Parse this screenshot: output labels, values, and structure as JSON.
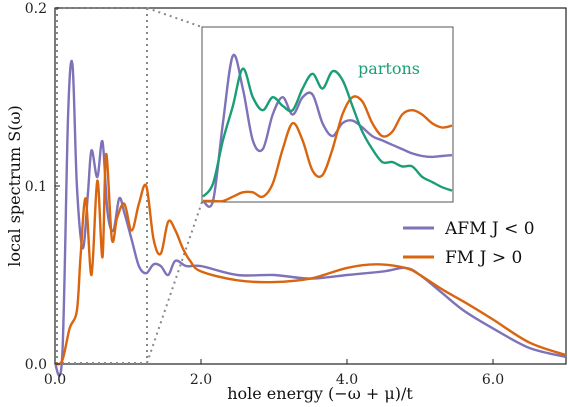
{
  "chart_data": [
    {
      "type": "line",
      "xlabel": "hole energy (−ω + μ)/t",
      "ylabel": "local spectrum S(ω)",
      "xlim": [
        0,
        7
      ],
      "ylim": [
        0,
        0.2
      ],
      "xticks": [
        "0.0",
        "2.0",
        "4.0",
        "6.0"
      ],
      "yticks": [
        "0.0",
        "0.1",
        "0.2"
      ],
      "grid": false,
      "legend": "right",
      "colors": {
        "afm": "#7e72b8",
        "fm": "#d9650f",
        "partons": "#1b9e77"
      },
      "series": [
        {
          "name": "AFM J < 0",
          "x": [
            0.0,
            0.1,
            0.18,
            0.24,
            0.3,
            0.38,
            0.45,
            0.5,
            0.58,
            0.65,
            0.72,
            0.8,
            0.88,
            0.95,
            1.05,
            1.15,
            1.25,
            1.35,
            1.45,
            1.55,
            1.65,
            1.8,
            2.0,
            2.5,
            3.0,
            3.5,
            4.0,
            4.5,
            4.8,
            5.0,
            5.3,
            5.6,
            6.0,
            6.5,
            7.0
          ],
          "values": [
            0.0,
            0.005,
            0.14,
            0.168,
            0.1,
            0.065,
            0.095,
            0.12,
            0.105,
            0.125,
            0.085,
            0.075,
            0.093,
            0.085,
            0.07,
            0.055,
            0.051,
            0.056,
            0.055,
            0.05,
            0.058,
            0.055,
            0.055,
            0.05,
            0.05,
            0.048,
            0.05,
            0.052,
            0.054,
            0.05,
            0.04,
            0.03,
            0.02,
            0.009,
            0.004
          ]
        },
        {
          "name": "FM J > 0",
          "x": [
            0.0,
            0.1,
            0.2,
            0.3,
            0.35,
            0.42,
            0.5,
            0.58,
            0.65,
            0.7,
            0.78,
            0.85,
            0.95,
            1.05,
            1.15,
            1.25,
            1.35,
            1.45,
            1.55,
            1.65,
            1.75,
            1.85,
            2.0,
            2.5,
            3.0,
            3.5,
            4.0,
            4.4,
            4.8,
            5.0,
            5.3,
            5.6,
            6.0,
            6.5,
            7.0
          ],
          "values": [
            0.0,
            0.002,
            0.02,
            0.03,
            0.06,
            0.093,
            0.05,
            0.103,
            0.06,
            0.118,
            0.07,
            0.082,
            0.09,
            0.075,
            0.09,
            0.1,
            0.07,
            0.062,
            0.08,
            0.075,
            0.065,
            0.058,
            0.052,
            0.047,
            0.046,
            0.048,
            0.054,
            0.056,
            0.054,
            0.05,
            0.042,
            0.035,
            0.025,
            0.012,
            0.005
          ]
        }
      ]
    },
    {
      "type": "line",
      "title": "",
      "xlim": [
        0,
        1.25
      ],
      "legend": "none",
      "series": [
        {
          "name": "AFM",
          "x": [
            0.0,
            0.05,
            0.1,
            0.15,
            0.2,
            0.25,
            0.3,
            0.35,
            0.4,
            0.45,
            0.5,
            0.55,
            0.6,
            0.65,
            0.7,
            0.75,
            0.8,
            0.85,
            0.9,
            0.95,
            1.0,
            1.05,
            1.1,
            1.15,
            1.2,
            1.25
          ],
          "values": [
            0.0,
            0.0,
            0.09,
            0.168,
            0.13,
            0.07,
            0.06,
            0.1,
            0.12,
            0.1,
            0.12,
            0.123,
            0.09,
            0.075,
            0.09,
            0.093,
            0.085,
            0.075,
            0.07,
            0.065,
            0.06,
            0.055,
            0.052,
            0.051,
            0.052,
            0.053
          ]
        },
        {
          "name": "FM",
          "x": [
            0.0,
            0.05,
            0.1,
            0.15,
            0.2,
            0.25,
            0.3,
            0.35,
            0.4,
            0.45,
            0.5,
            0.55,
            0.6,
            0.65,
            0.7,
            0.75,
            0.8,
            0.85,
            0.9,
            0.95,
            1.0,
            1.05,
            1.1,
            1.15,
            1.2,
            1.25
          ],
          "values": [
            0.0,
            0.0,
            0.0,
            0.005,
            0.01,
            0.01,
            0.005,
            0.02,
            0.06,
            0.09,
            0.07,
            0.035,
            0.03,
            0.06,
            0.1,
            0.12,
            0.115,
            0.09,
            0.075,
            0.08,
            0.1,
            0.105,
            0.1,
            0.09,
            0.085,
            0.087
          ]
        },
        {
          "name": "partons",
          "x": [
            0.0,
            0.05,
            0.1,
            0.15,
            0.2,
            0.25,
            0.3,
            0.35,
            0.4,
            0.45,
            0.5,
            0.55,
            0.6,
            0.65,
            0.7,
            0.75,
            0.8,
            0.85,
            0.9,
            0.95,
            1.0,
            1.05,
            1.1,
            1.15,
            1.2,
            1.25
          ],
          "values": [
            0.005,
            0.02,
            0.07,
            0.11,
            0.153,
            0.12,
            0.105,
            0.12,
            0.11,
            0.105,
            0.13,
            0.147,
            0.13,
            0.15,
            0.14,
            0.11,
            0.08,
            0.06,
            0.045,
            0.045,
            0.04,
            0.04,
            0.028,
            0.022,
            0.016,
            0.012
          ]
        }
      ],
      "annotations": [
        {
          "text": "partons"
        }
      ]
    }
  ]
}
